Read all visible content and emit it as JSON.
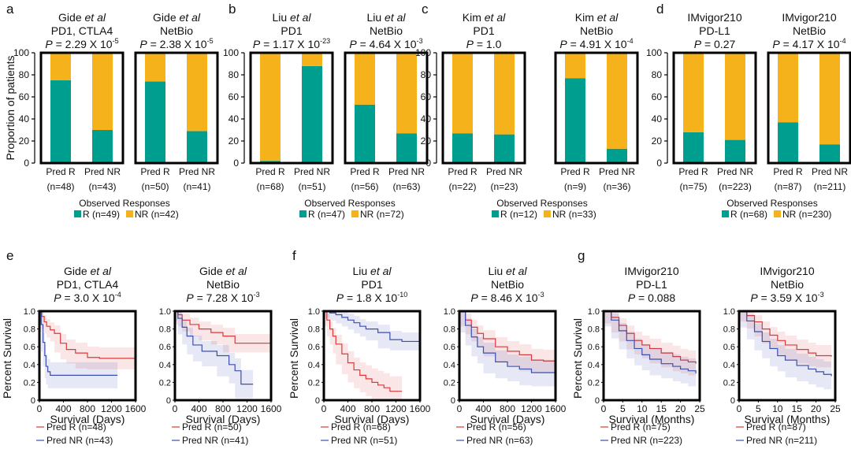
{
  "colors": {
    "R": "#009e8e",
    "NR": "#f6b21b",
    "pred_r": "#d93a3a",
    "pred_nr": "#3b4fb0"
  },
  "labels": {
    "ylabel_bar": "Proportion of patients",
    "ylabel_km": "Percent Survival",
    "observed_title": "Observed Responses",
    "pred_r": "Pred R",
    "pred_nr": "Pred NR",
    "days": "Survival (Days)",
    "months": "Survival (Months)"
  },
  "chart_data": [
    {
      "type": "bar",
      "panel": "a",
      "cohort": "Gide",
      "subtitle": "PD1, CTLA4",
      "p_mantissa": "2.29",
      "p_exp": "-5",
      "categories": [
        "Pred R",
        "Pred NR"
      ],
      "n": [
        "(n=48)",
        "(n=43)"
      ],
      "series": [
        {
          "name": "R",
          "values": [
            75,
            30
          ]
        },
        {
          "name": "NR",
          "values": [
            25,
            70
          ]
        }
      ],
      "ylim": [
        0,
        100
      ]
    },
    {
      "type": "bar",
      "panel": "a",
      "cohort": "Gide",
      "subtitle": "NetBio",
      "p_mantissa": "2.38",
      "p_exp": "-5",
      "categories": [
        "Pred R",
        "Pred NR"
      ],
      "n": [
        "(n=50)",
        "(n=41)"
      ],
      "series": [
        {
          "name": "R",
          "values": [
            74,
            29
          ]
        },
        {
          "name": "NR",
          "values": [
            26,
            71
          ]
        }
      ],
      "ylim": [
        0,
        100
      ]
    },
    {
      "type": "bar",
      "panel": "b",
      "cohort": "Liu",
      "subtitle": "PD1",
      "p_mantissa": "1.17",
      "p_exp": "-23",
      "categories": [
        "Pred R",
        "Pred NR"
      ],
      "n": [
        "(n=68)",
        "(n=51)"
      ],
      "series": [
        {
          "name": "R",
          "values": [
            2,
            88
          ]
        },
        {
          "name": "NR",
          "values": [
            98,
            12
          ]
        }
      ],
      "ylim": [
        0,
        100
      ]
    },
    {
      "type": "bar",
      "panel": "b",
      "cohort": "Liu",
      "subtitle": "NetBio",
      "p_mantissa": "4.64",
      "p_exp": "-3",
      "categories": [
        "Pred R",
        "Pred NR"
      ],
      "n": [
        "(n=56)",
        "(n=63)"
      ],
      "series": [
        {
          "name": "R",
          "values": [
            53,
            27
          ]
        },
        {
          "name": "NR",
          "values": [
            47,
            73
          ]
        }
      ],
      "ylim": [
        0,
        100
      ]
    },
    {
      "type": "bar",
      "panel": "c",
      "cohort": "Kim",
      "subtitle": "PD1",
      "p_mantissa": "1.0",
      "p_exp": "",
      "categories": [
        "Pred R",
        "Pred NR"
      ],
      "n": [
        "(n=22)",
        "(n=23)"
      ],
      "series": [
        {
          "name": "R",
          "values": [
            27,
            26
          ]
        },
        {
          "name": "NR",
          "values": [
            73,
            74
          ]
        }
      ],
      "ylim": [
        0,
        100
      ]
    },
    {
      "type": "bar",
      "panel": "c",
      "cohort": "Kim",
      "subtitle": "NetBio",
      "p_mantissa": "4.91",
      "p_exp": "-4",
      "categories": [
        "Pred R",
        "Pred NR"
      ],
      "n": [
        "(n=9)",
        "(n=36)"
      ],
      "series": [
        {
          "name": "R",
          "values": [
            77,
            13
          ]
        },
        {
          "name": "NR",
          "values": [
            23,
            87
          ]
        }
      ],
      "ylim": [
        0,
        100
      ]
    },
    {
      "type": "bar",
      "panel": "d",
      "cohort": "IMvigor210",
      "subtitle": "PD-L1",
      "p_mantissa": "0.27",
      "p_exp": "",
      "categories": [
        "Pred R",
        "Pred NR"
      ],
      "n": [
        "(n=75)",
        "(n=223)"
      ],
      "series": [
        {
          "name": "R",
          "values": [
            28,
            21
          ]
        },
        {
          "name": "NR",
          "values": [
            72,
            79
          ]
        }
      ],
      "ylim": [
        0,
        100
      ]
    },
    {
      "type": "bar",
      "panel": "d",
      "cohort": "IMvigor210",
      "subtitle": "NetBio",
      "p_mantissa": "4.17",
      "p_exp": "-4",
      "categories": [
        "Pred R",
        "Pred NR"
      ],
      "n": [
        "(n=87)",
        "(n=211)"
      ],
      "series": [
        {
          "name": "R",
          "values": [
            37,
            17
          ]
        },
        {
          "name": "NR",
          "values": [
            63,
            83
          ]
        }
      ],
      "ylim": [
        0,
        100
      ]
    },
    {
      "type": "line",
      "panel": "e",
      "cohort": "Gide",
      "subtitle": "PD1, CTLA4",
      "p_mantissa": "3.0",
      "p_exp": "-4",
      "xlabel": "Survival (Days)",
      "xlim": [
        0,
        1600
      ],
      "xticks": [
        0,
        400,
        800,
        1200,
        1600
      ],
      "ylim": [
        0,
        1
      ],
      "series": [
        {
          "name": "Pred R (n=48)",
          "x": [
            0,
            40,
            80,
            120,
            180,
            250,
            350,
            450,
            600,
            800,
            1000,
            1600
          ],
          "y": [
            1.0,
            0.94,
            0.88,
            0.83,
            0.79,
            0.75,
            0.64,
            0.57,
            0.53,
            0.48,
            0.47,
            0.47
          ]
        },
        {
          "name": "Pred NR (n=43)",
          "x": [
            0,
            30,
            60,
            90,
            110,
            140,
            180,
            300,
            1300
          ],
          "y": [
            1.0,
            0.85,
            0.65,
            0.5,
            0.38,
            0.32,
            0.28,
            0.28,
            0.28
          ]
        }
      ]
    },
    {
      "type": "line",
      "panel": "e",
      "cohort": "Gide",
      "subtitle": "NetBio",
      "p_mantissa": "7.28",
      "p_exp": "-3",
      "xlabel": "Survival (Days)",
      "xlim": [
        0,
        1600
      ],
      "xticks": [
        0,
        400,
        800,
        1200,
        1600
      ],
      "ylim": [
        0,
        1
      ],
      "series": [
        {
          "name": "Pred R (n=50)",
          "x": [
            0,
            50,
            120,
            250,
            400,
            600,
            800,
            1000,
            1600
          ],
          "y": [
            1.0,
            0.96,
            0.9,
            0.85,
            0.8,
            0.76,
            0.72,
            0.64,
            0.64
          ]
        },
        {
          "name": "Pred NR (n=41)",
          "x": [
            0,
            50,
            120,
            200,
            300,
            450,
            700,
            900,
            1000,
            1100,
            1300
          ],
          "y": [
            1.0,
            0.92,
            0.82,
            0.72,
            0.62,
            0.55,
            0.5,
            0.4,
            0.33,
            0.18,
            0.18
          ]
        }
      ]
    },
    {
      "type": "line",
      "panel": "f",
      "cohort": "Liu",
      "subtitle": "PD1",
      "p_mantissa": "1.8",
      "p_exp": "-10",
      "xlabel": "Survival (Days)",
      "xlim": [
        0,
        1600
      ],
      "xticks": [
        0,
        400,
        800,
        1200,
        1600
      ],
      "ylim": [
        0,
        1
      ],
      "series": [
        {
          "name": "Pred R (n=68)",
          "x": [
            0,
            50,
            100,
            150,
            200,
            300,
            400,
            500,
            600,
            700,
            800,
            900,
            1000,
            1100,
            1300
          ],
          "y": [
            1.0,
            0.9,
            0.8,
            0.72,
            0.63,
            0.52,
            0.42,
            0.34,
            0.28,
            0.24,
            0.2,
            0.17,
            0.14,
            0.1,
            0.1
          ]
        },
        {
          "name": "Pred NR (n=51)",
          "x": [
            0,
            100,
            200,
            300,
            400,
            500,
            600,
            700,
            900,
            1100,
            1300,
            1600
          ],
          "y": [
            1.0,
            0.98,
            0.96,
            0.93,
            0.9,
            0.87,
            0.83,
            0.8,
            0.76,
            0.68,
            0.66,
            0.66
          ]
        }
      ]
    },
    {
      "type": "line",
      "panel": "f",
      "cohort": "Liu",
      "subtitle": "NetBio",
      "p_mantissa": "8.46",
      "p_exp": "-3",
      "xlabel": "Survival (Days)",
      "xlim": [
        0,
        1600
      ],
      "xticks": [
        0,
        400,
        800,
        1200,
        1600
      ],
      "ylim": [
        0,
        1
      ],
      "series": [
        {
          "name": "Pred R (n=56)",
          "x": [
            0,
            100,
            200,
            300,
            400,
            600,
            800,
            1000,
            1200,
            1400,
            1600
          ],
          "y": [
            1.0,
            0.9,
            0.82,
            0.75,
            0.69,
            0.6,
            0.55,
            0.51,
            0.45,
            0.44,
            0.44
          ]
        },
        {
          "name": "Pred NR (n=63)",
          "x": [
            0,
            100,
            200,
            300,
            400,
            600,
            800,
            1000,
            1200,
            1600
          ],
          "y": [
            1.0,
            0.84,
            0.71,
            0.6,
            0.53,
            0.43,
            0.38,
            0.35,
            0.31,
            0.3
          ]
        }
      ]
    },
    {
      "type": "line",
      "panel": "g",
      "cohort": "IMvigor210",
      "subtitle": "PD-L1",
      "p_mantissa": "0.088",
      "p_exp": "",
      "xlabel": "Survival (Months)",
      "xlim": [
        0,
        25
      ],
      "xticks": [
        0,
        5,
        10,
        15,
        20,
        25
      ],
      "ylim": [
        0,
        1
      ],
      "series": [
        {
          "name": "Pred R (n=75)",
          "x": [
            0,
            2,
            4,
            6,
            8,
            10,
            12,
            15,
            18,
            20,
            22,
            24
          ],
          "y": [
            1.0,
            0.93,
            0.84,
            0.75,
            0.67,
            0.62,
            0.58,
            0.53,
            0.49,
            0.45,
            0.43,
            0.41
          ]
        },
        {
          "name": "Pred NR (n=223)",
          "x": [
            0,
            2,
            4,
            6,
            8,
            10,
            12,
            15,
            18,
            20,
            22,
            24
          ],
          "y": [
            1.0,
            0.9,
            0.78,
            0.67,
            0.58,
            0.51,
            0.46,
            0.41,
            0.38,
            0.35,
            0.33,
            0.3
          ]
        }
      ]
    },
    {
      "type": "line",
      "panel": "g",
      "cohort": "IMvigor210",
      "subtitle": "NetBio",
      "p_mantissa": "3.59",
      "p_exp": "-3",
      "xlabel": "Survival (Months)",
      "xlim": [
        0,
        25
      ],
      "xticks": [
        0,
        5,
        10,
        15,
        20,
        25
      ],
      "ylim": [
        0,
        1
      ],
      "series": [
        {
          "name": "Pred R (n=87)",
          "x": [
            0,
            2,
            4,
            6,
            8,
            10,
            12,
            15,
            18,
            20,
            24
          ],
          "y": [
            1.0,
            0.95,
            0.88,
            0.8,
            0.73,
            0.67,
            0.62,
            0.57,
            0.53,
            0.5,
            0.49
          ]
        },
        {
          "name": "Pred NR (n=211)",
          "x": [
            0,
            2,
            4,
            6,
            8,
            10,
            12,
            15,
            18,
            20,
            22,
            24
          ],
          "y": [
            1.0,
            0.89,
            0.77,
            0.66,
            0.58,
            0.5,
            0.45,
            0.39,
            0.35,
            0.32,
            0.29,
            0.27
          ]
        }
      ]
    }
  ],
  "legends": [
    {
      "panel": "a",
      "items": [
        "R (n=49)",
        "NR (n=42)"
      ]
    },
    {
      "panel": "b",
      "items": [
        "R (n=47)",
        "NR (n=72)"
      ]
    },
    {
      "panel": "c",
      "items": [
        "R (n=12)",
        "NR (n=33)"
      ]
    },
    {
      "panel": "d",
      "items": [
        "R (n=68)",
        "NR (n=230)"
      ]
    }
  ]
}
